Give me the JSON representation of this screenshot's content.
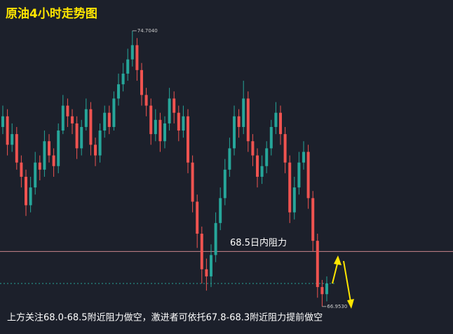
{
  "chart_data": {
    "type": "candlestick",
    "title": "原油4小时走势图",
    "footnote": "上方关注68.0-68.5附近阻力做空，激进者可依托67.8-68.3附近阻力提前做空",
    "high_label": "74.7040",
    "low_label": "66.9530",
    "resistance": {
      "value": 68.5,
      "label": "68.5日内阻力"
    },
    "up_color": "#26a69a",
    "down_color": "#ef5350",
    "ylim": [
      66.18,
      75.57
    ],
    "open": [
      72.0,
      72.3,
      71.5,
      71.8,
      71.0,
      70.6,
      69.8,
      70.3,
      71.0,
      70.8,
      71.6,
      71.2,
      70.9,
      71.9,
      72.6,
      72.3,
      72.1,
      71.4,
      72.0,
      72.5,
      71.5,
      71.2,
      71.9,
      72.4,
      72.0,
      72.8,
      73.2,
      73.5,
      73.9,
      74.3,
      73.6,
      72.9,
      72.6,
      71.8,
      72.2,
      71.6,
      72.1,
      72.8,
      72.4,
      71.9,
      72.3,
      71.0,
      69.9,
      69.0,
      68.0,
      67.8,
      68.4,
      69.3,
      70.0,
      70.8,
      71.4,
      72.3,
      72.0,
      72.8,
      71.6,
      71.2,
      70.6,
      70.9,
      71.4,
      72.0,
      72.4,
      71.8,
      71.0,
      69.6,
      70.3,
      71.0,
      71.3,
      70.0,
      68.8,
      67.5,
      67.3
    ],
    "high": [
      72.6,
      72.5,
      72.1,
      72.0,
      71.2,
      70.8,
      70.6,
      71.3,
      71.2,
      71.9,
      71.8,
      71.4,
      72.1,
      72.9,
      72.8,
      72.5,
      72.3,
      72.2,
      72.8,
      72.7,
      71.7,
      72.1,
      72.6,
      72.6,
      73.0,
      73.5,
      73.8,
      74.2,
      74.704,
      74.5,
      73.8,
      73.1,
      72.8,
      72.5,
      72.4,
      72.3,
      73.1,
      73.0,
      72.6,
      72.6,
      72.5,
      71.2,
      70.1,
      69.2,
      68.3,
      68.7,
      69.6,
      70.3,
      71.1,
      71.7,
      72.6,
      72.5,
      73.3,
      73.0,
      71.8,
      71.4,
      71.2,
      71.6,
      72.2,
      72.7,
      72.6,
      72.0,
      71.2,
      70.6,
      71.3,
      71.6,
      71.5,
      70.2,
      69.0,
      67.7,
      67.8
    ],
    "low": [
      71.8,
      71.2,
      71.3,
      70.8,
      70.3,
      69.5,
      69.6,
      70.1,
      70.5,
      70.6,
      71.0,
      70.6,
      70.7,
      71.8,
      72.0,
      71.8,
      71.1,
      71.2,
      71.9,
      71.2,
      70.9,
      71.0,
      71.7,
      71.8,
      71.9,
      72.6,
      73.0,
      73.3,
      73.7,
      73.3,
      72.6,
      72.3,
      71.5,
      71.6,
      71.3,
      71.4,
      71.9,
      72.1,
      71.6,
      71.7,
      70.7,
      69.6,
      68.6,
      67.6,
      67.4,
      67.5,
      68.2,
      69.1,
      69.8,
      70.6,
      71.2,
      71.7,
      71.8,
      71.3,
      70.9,
      70.3,
      70.4,
      70.7,
      71.2,
      71.8,
      71.5,
      70.7,
      69.3,
      69.4,
      70.1,
      70.8,
      69.7,
      68.5,
      67.2,
      66.953,
      67.1
    ],
    "close": [
      72.3,
      71.5,
      71.8,
      71.0,
      70.6,
      69.8,
      70.3,
      71.0,
      70.8,
      71.6,
      71.2,
      70.9,
      71.9,
      72.6,
      72.3,
      72.1,
      71.4,
      72.0,
      72.5,
      71.5,
      71.2,
      71.9,
      72.4,
      72.0,
      72.8,
      73.2,
      73.5,
      73.9,
      74.3,
      73.6,
      72.9,
      72.6,
      71.8,
      72.2,
      71.6,
      72.1,
      72.8,
      72.4,
      71.9,
      72.3,
      71.0,
      69.9,
      69.0,
      68.0,
      67.8,
      68.4,
      69.3,
      70.0,
      70.8,
      71.4,
      72.3,
      72.0,
      72.8,
      71.6,
      71.2,
      70.6,
      70.9,
      71.4,
      72.0,
      72.4,
      71.8,
      71.0,
      69.6,
      70.3,
      71.0,
      71.3,
      70.0,
      68.8,
      67.5,
      67.3,
      67.6
    ]
  }
}
